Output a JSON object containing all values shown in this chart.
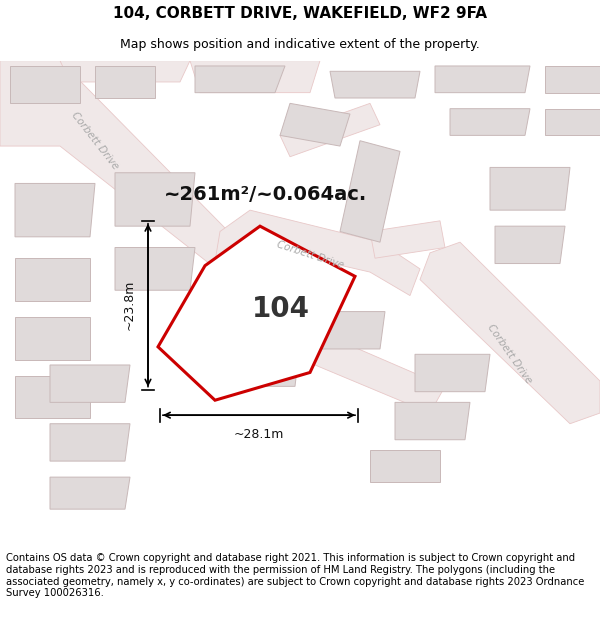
{
  "title": "104, CORBETT DRIVE, WAKEFIELD, WF2 9FA",
  "subtitle": "Map shows position and indicative extent of the property.",
  "area_label": "~261m²/~0.064ac.",
  "plot_number": "104",
  "dim_width": "~28.1m",
  "dim_height": "~23.8m",
  "footer_text": "Contains OS data © Crown copyright and database right 2021. This information is subject to Crown copyright and database rights 2023 and is reproduced with the permission of HM Land Registry. The polygons (including the associated geometry, namely x, y co-ordinates) are subject to Crown copyright and database rights 2023 Ordnance Survey 100026316.",
  "map_bg": "#f7f2f2",
  "road_fill": "#f0e8e8",
  "road_edge": "#e8c8c8",
  "plot_edge_color": "#cc0000",
  "building_fill": "#e0dada",
  "building_edge": "#c8b8b8",
  "road_label_color": "#aaaaaa",
  "title_fontsize": 11,
  "subtitle_fontsize": 9,
  "area_fontsize": 14,
  "plot_num_fontsize": 20,
  "dim_fontsize": 9,
  "footer_fontsize": 7.2,
  "road_lw": 0.6
}
